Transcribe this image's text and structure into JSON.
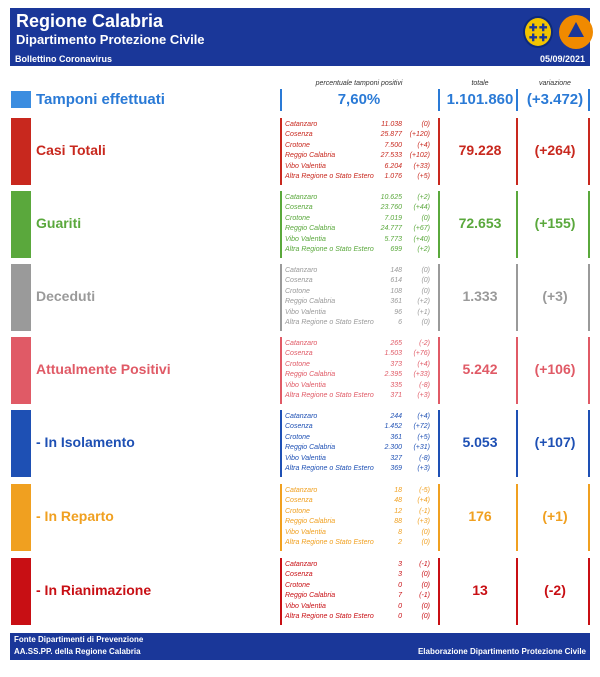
{
  "header": {
    "title": "Regione Calabria",
    "subtitle": "Dipartimento Protezione Civile",
    "bulletin": "Bollettino Coronavirus",
    "date": "05/09/2021"
  },
  "columns": {
    "pct_label": "percentuale tamponi positivi",
    "total_label": "totale",
    "var_label": "variazione"
  },
  "tamponi": {
    "label": "Tamponi effettuati",
    "pct": "7,60%",
    "total": "1.101.860",
    "var": "(+3.472)",
    "color": "#2a7ad6"
  },
  "sections": [
    {
      "label": "Casi Totali",
      "color": "#c8281e",
      "total": "79.228",
      "var": "(+264)",
      "rows": [
        {
          "name": "Catanzaro",
          "value": "11.038",
          "delta": "(0)"
        },
        {
          "name": "Cosenza",
          "value": "25.877",
          "delta": "(+120)"
        },
        {
          "name": "Crotone",
          "value": "7.500",
          "delta": "(+4)"
        },
        {
          "name": "Reggio Calabria",
          "value": "27.533",
          "delta": "(+102)"
        },
        {
          "name": "Vibo Valentia",
          "value": "6.204",
          "delta": "(+33)"
        },
        {
          "name": "Altra Regione o Stato Estero",
          "value": "1.076",
          "delta": "(+5)"
        }
      ]
    },
    {
      "label": "Guariti",
      "color": "#5aa83c",
      "total": "72.653",
      "var": "(+155)",
      "rows": [
        {
          "name": "Catanzaro",
          "value": "10.625",
          "delta": "(+2)"
        },
        {
          "name": "Cosenza",
          "value": "23.760",
          "delta": "(+44)"
        },
        {
          "name": "Crotone",
          "value": "7.019",
          "delta": "(0)"
        },
        {
          "name": "Reggio Calabria",
          "value": "24.777",
          "delta": "(+67)"
        },
        {
          "name": "Vibo Valentia",
          "value": "5.773",
          "delta": "(+40)"
        },
        {
          "name": "Altra Regione o Stato Estero",
          "value": "699",
          "delta": "(+2)"
        }
      ]
    },
    {
      "label": "Deceduti",
      "color": "#9a9a9a",
      "total": "1.333",
      "var": "(+3)",
      "rows": [
        {
          "name": "Catanzaro",
          "value": "148",
          "delta": "(0)"
        },
        {
          "name": "Cosenza",
          "value": "614",
          "delta": "(0)"
        },
        {
          "name": "Crotone",
          "value": "108",
          "delta": "(0)"
        },
        {
          "name": "Reggio Calabria",
          "value": "361",
          "delta": "(+2)"
        },
        {
          "name": "Vibo Valentia",
          "value": "96",
          "delta": "(+1)"
        },
        {
          "name": "Altra Regione o Stato Estero",
          "value": "6",
          "delta": "(0)"
        }
      ]
    },
    {
      "label": "Attualmente Positivi",
      "color": "#e05a66",
      "total": "5.242",
      "var": "(+106)",
      "rows": [
        {
          "name": "Catanzaro",
          "value": "265",
          "delta": "(-2)"
        },
        {
          "name": "Cosenza",
          "value": "1.503",
          "delta": "(+76)"
        },
        {
          "name": "Crotone",
          "value": "373",
          "delta": "(+4)"
        },
        {
          "name": "Reggio Calabria",
          "value": "2.395",
          "delta": "(+33)"
        },
        {
          "name": "Vibo Valentia",
          "value": "335",
          "delta": "(-8)"
        },
        {
          "name": "Altra Regione o Stato Estero",
          "value": "371",
          "delta": "(+3)"
        }
      ]
    },
    {
      "label": "- In Isolamento",
      "color": "#1e50b4",
      "total": "5.053",
      "var": "(+107)",
      "rows": [
        {
          "name": "Catanzaro",
          "value": "244",
          "delta": "(+4)"
        },
        {
          "name": "Cosenza",
          "value": "1.452",
          "delta": "(+72)"
        },
        {
          "name": "Crotone",
          "value": "361",
          "delta": "(+5)"
        },
        {
          "name": "Reggio Calabria",
          "value": "2.300",
          "delta": "(+31)"
        },
        {
          "name": "Vibo Valentia",
          "value": "327",
          "delta": "(-8)"
        },
        {
          "name": "Altra Regione o Stato Estero",
          "value": "369",
          "delta": "(+3)"
        }
      ]
    },
    {
      "label": "- In Reparto",
      "color": "#f0a020",
      "total": "176",
      "var": "(+1)",
      "rows": [
        {
          "name": "Catanzaro",
          "value": "18",
          "delta": "(-5)"
        },
        {
          "name": "Cosenza",
          "value": "48",
          "delta": "(+4)"
        },
        {
          "name": "Crotone",
          "value": "12",
          "delta": "(-1)"
        },
        {
          "name": "Reggio Calabria",
          "value": "88",
          "delta": "(+3)"
        },
        {
          "name": "Vibo Valentia",
          "value": "8",
          "delta": "(0)"
        },
        {
          "name": "Altra Regione o Stato Estero",
          "value": "2",
          "delta": "(0)"
        }
      ]
    },
    {
      "label": "- In Rianimazione",
      "color": "#c80f14",
      "total": "13",
      "var": "(-2)",
      "rows": [
        {
          "name": "Catanzaro",
          "value": "3",
          "delta": "(-1)"
        },
        {
          "name": "Cosenza",
          "value": "3",
          "delta": "(0)"
        },
        {
          "name": "Crotone",
          "value": "0",
          "delta": "(0)"
        },
        {
          "name": "Reggio Calabria",
          "value": "7",
          "delta": "(-1)"
        },
        {
          "name": "Vibo Valentia",
          "value": "0",
          "delta": "(0)"
        },
        {
          "name": "Altra Regione o Stato Estero",
          "value": "0",
          "delta": "(0)"
        }
      ]
    }
  ],
  "footer": {
    "source1": "Fonte Dipartimenti di Prevenzione",
    "source2": "AA.SS.PP.  della Regione Calabria",
    "credit": "Elaborazione Dipartimento Protezione Civile"
  }
}
